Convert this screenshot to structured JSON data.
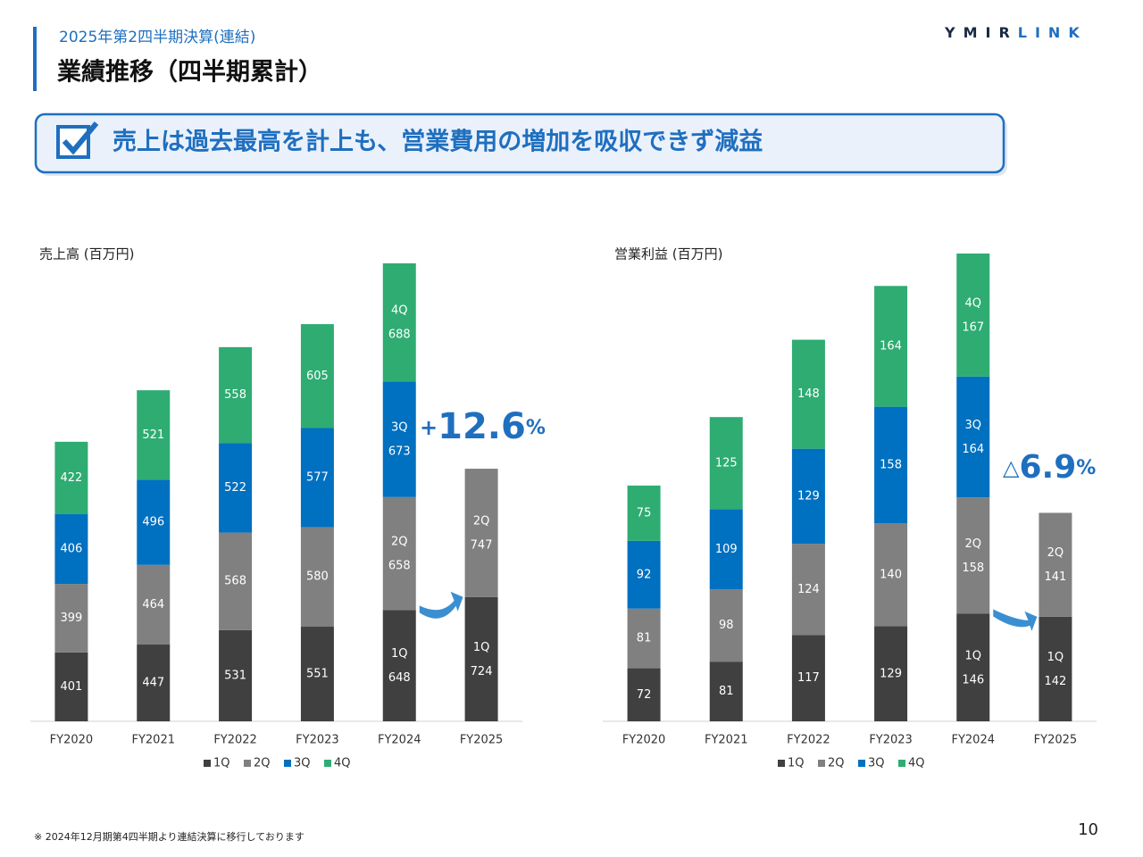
{
  "header": {
    "subtitle": "2025年第2四半期決算(連結)",
    "title": "業績推移（四半期累計）",
    "logo_dark": "YMIR",
    "logo_blue": "LINK"
  },
  "banner": "売上は過去最高を計上も、営業費用の増加を吸収できず減益",
  "chart_data": [
    {
      "type": "bar",
      "stacked": true,
      "title": "売上高 (百万円)",
      "categories": [
        "FY2020",
        "FY2021",
        "FY2022",
        "FY2023",
        "FY2024",
        "FY2025"
      ],
      "series": [
        {
          "name": "1Q",
          "color": "#404040",
          "values": [
            401,
            447,
            531,
            551,
            648,
            724
          ]
        },
        {
          "name": "2Q",
          "color": "#808080",
          "values": [
            399,
            464,
            568,
            580,
            658,
            747
          ]
        },
        {
          "name": "3Q",
          "color": "#0070c0",
          "values": [
            406,
            496,
            522,
            577,
            673,
            null
          ]
        },
        {
          "name": "4Q",
          "color": "#2eac72",
          "values": [
            422,
            521,
            558,
            605,
            688,
            null
          ]
        }
      ],
      "annotation": {
        "prefix": "+",
        "value": 12.6,
        "suffix": "%"
      }
    },
    {
      "type": "bar",
      "stacked": true,
      "title": "営業利益 (百万円)",
      "categories": [
        "FY2020",
        "FY2021",
        "FY2022",
        "FY2023",
        "FY2024",
        "FY2025"
      ],
      "series": [
        {
          "name": "1Q",
          "color": "#404040",
          "values": [
            72,
            81,
            117,
            129,
            146,
            142
          ]
        },
        {
          "name": "2Q",
          "color": "#808080",
          "values": [
            81,
            98,
            124,
            140,
            158,
            141
          ]
        },
        {
          "name": "3Q",
          "color": "#0070c0",
          "values": [
            92,
            109,
            129,
            158,
            164,
            null
          ]
        },
        {
          "name": "4Q",
          "color": "#2eac72",
          "values": [
            75,
            125,
            148,
            164,
            167,
            null
          ]
        }
      ],
      "annotation": {
        "prefix": "△",
        "value": 6.9,
        "suffix": "%"
      }
    }
  ],
  "footnote": "※ 2024年12月期第4四半期より連結決算に移行しております",
  "page_number": 10
}
